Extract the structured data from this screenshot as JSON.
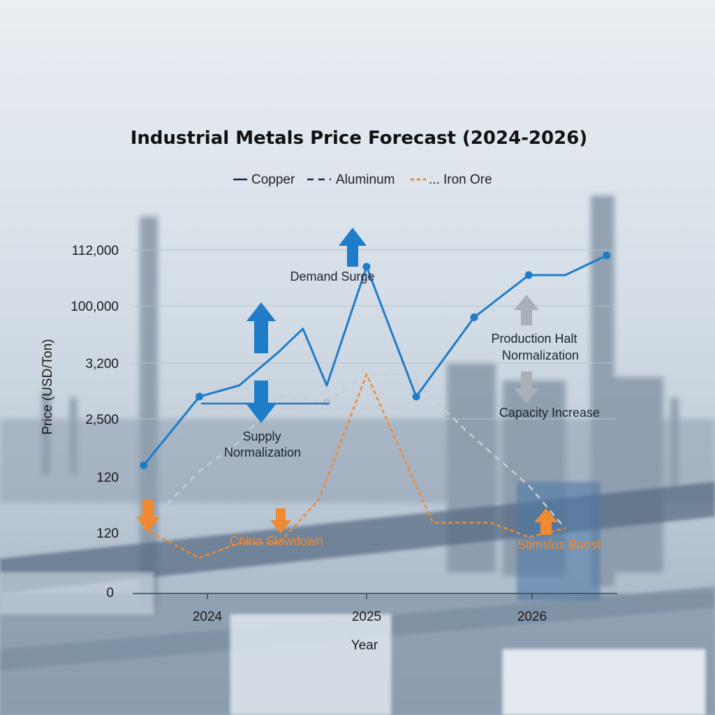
{
  "chart_data": {
    "type": "line",
    "title": "Industrial Metals Price Forecast (2024-2026)",
    "xlabel": "Year",
    "ylabel": "Price (USD/Ton)",
    "x_ticks": [
      "2024",
      "2025",
      "2026"
    ],
    "y_ticks": [
      "0",
      "120",
      "120",
      "2,500",
      "3,200",
      "100,000",
      "112,000"
    ],
    "legend": {
      "placement": "top-center"
    },
    "grid": true,
    "series": [
      {
        "name": "Copper",
        "color": "#1f7cc8",
        "style": "solid",
        "values": [
          [
            2023.6,
            2.2
          ],
          [
            2023.95,
            3.4
          ],
          [
            2024.2,
            3.6
          ],
          [
            2024.45,
            4.2
          ],
          [
            2024.6,
            4.6
          ],
          [
            2024.75,
            3.6
          ],
          [
            2025.0,
            5.7
          ],
          [
            2025.3,
            3.4
          ],
          [
            2025.65,
            4.8
          ],
          [
            2025.98,
            5.55
          ],
          [
            2026.2,
            5.55
          ],
          [
            2026.45,
            5.9
          ]
        ]
      },
      {
        "name": "Aluminum",
        "color": "#c9cdd2",
        "style": "dashed",
        "values": [
          [
            2023.6,
            1.1
          ],
          [
            2023.95,
            2.1
          ],
          [
            2024.2,
            2.6
          ],
          [
            2024.45,
            3.4
          ],
          [
            2024.75,
            3.3
          ],
          [
            2025.0,
            3.8
          ],
          [
            2025.25,
            3.8
          ],
          [
            2025.6,
            2.8
          ],
          [
            2025.98,
            1.85
          ],
          [
            2026.2,
            1.1
          ]
        ]
      },
      {
        "name": "Iron Ore",
        "color": "#ef8a32",
        "style": "dotted",
        "values": [
          [
            2023.6,
            1.1
          ],
          [
            2023.95,
            0.6
          ],
          [
            2024.2,
            0.85
          ],
          [
            2024.45,
            0.85
          ],
          [
            2024.7,
            1.6
          ],
          [
            2025.0,
            3.8
          ],
          [
            2025.4,
            1.2
          ],
          [
            2025.75,
            1.2
          ],
          [
            2025.98,
            0.95
          ],
          [
            2026.2,
            1.1
          ]
        ]
      }
    ],
    "annotations": [
      {
        "text": "Demand Surge",
        "color": "#1e2430"
      },
      {
        "text": "Supply",
        "color": "#1e2430"
      },
      {
        "text": "Normalization",
        "color": "#1e2430"
      },
      {
        "text": "Production Halt",
        "color": "#1e2430"
      },
      {
        "text": "Normalization",
        "color": "#1e2430"
      },
      {
        "text": "Capacity Increase",
        "color": "#1e2430"
      },
      {
        "text": "China Slowdown",
        "color": "#ef8a32"
      },
      {
        "text": ".Stimslus Boost",
        "color": "#ef8a32"
      }
    ]
  }
}
